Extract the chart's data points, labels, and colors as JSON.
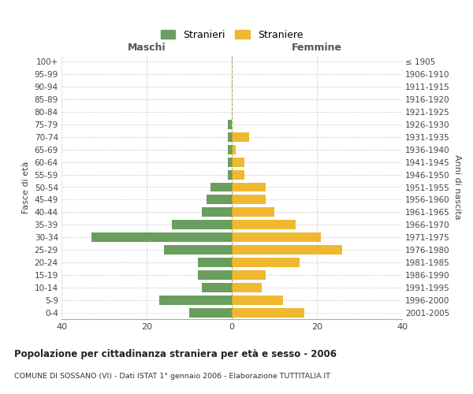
{
  "age_groups": [
    "0-4",
    "5-9",
    "10-14",
    "15-19",
    "20-24",
    "25-29",
    "30-34",
    "35-39",
    "40-44",
    "45-49",
    "50-54",
    "55-59",
    "60-64",
    "65-69",
    "70-74",
    "75-79",
    "80-84",
    "85-89",
    "90-94",
    "95-99",
    "100+"
  ],
  "birth_years": [
    "2001-2005",
    "1996-2000",
    "1991-1995",
    "1986-1990",
    "1981-1985",
    "1976-1980",
    "1971-1975",
    "1966-1970",
    "1961-1965",
    "1956-1960",
    "1951-1955",
    "1946-1950",
    "1941-1945",
    "1936-1940",
    "1931-1935",
    "1926-1930",
    "1921-1925",
    "1916-1920",
    "1911-1915",
    "1906-1910",
    "≤ 1905"
  ],
  "maschi": [
    10,
    17,
    7,
    8,
    8,
    16,
    33,
    14,
    7,
    6,
    5,
    1,
    1,
    1,
    1,
    1,
    0,
    0,
    0,
    0,
    0
  ],
  "femmine": [
    17,
    12,
    7,
    8,
    16,
    26,
    21,
    15,
    10,
    8,
    8,
    3,
    3,
    1,
    4,
    0,
    0,
    0,
    0,
    0,
    0
  ],
  "male_color": "#6a9e5e",
  "female_color": "#f0b830",
  "background_color": "#ffffff",
  "grid_color": "#cccccc",
  "title": "Popolazione per cittadinanza straniera per età e sesso - 2006",
  "subtitle": "COMUNE DI SOSSANO (VI) - Dati ISTAT 1° gennaio 2006 - Elaborazione TUTTITALIA.IT",
  "xlabel_left": "Maschi",
  "xlabel_right": "Femmine",
  "ylabel_left": "Fasce di età",
  "ylabel_right": "Anni di nascita",
  "legend_male": "Stranieri",
  "legend_female": "Straniere",
  "xlim": 40
}
